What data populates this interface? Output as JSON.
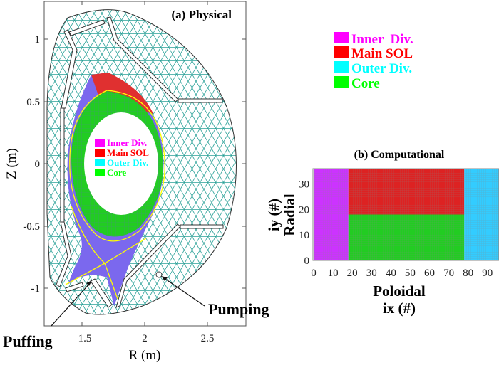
{
  "panel_a": {
    "title": "(a) Physical",
    "xlabel": "R (m)",
    "ylabel": "Z (m)",
    "xticks": [
      "1.5",
      "2",
      "2.5"
    ],
    "xtick_values": [
      1.5,
      2.0,
      2.5
    ],
    "yticks": [
      "1",
      "0.5",
      "0",
      "-0.5",
      "-1"
    ],
    "ytick_values": [
      1.0,
      0.5,
      0.0,
      -0.5,
      -1.0
    ],
    "xlim": [
      1.2,
      2.8
    ],
    "ylim": [
      -1.3,
      1.3
    ],
    "inner_legend": [
      {
        "label": "Inner Div.",
        "color": "#ff00ff"
      },
      {
        "label": "Main SOL",
        "color": "#ff0000"
      },
      {
        "label": "Outer Div.",
        "color": "#00ffff"
      },
      {
        "label": "Core",
        "color": "#00ff00"
      }
    ],
    "annotations": {
      "puffing": "Puffing",
      "pumping": "Pumping"
    },
    "colors": {
      "mesh": "#2aa198",
      "separatrix": "#ffff00",
      "sol": "#7b68ee"
    }
  },
  "legend": [
    {
      "label": "Inner  Div.",
      "color": "#ff00ff"
    },
    {
      "label": "Main SOL",
      "color": "#ff0000"
    },
    {
      "label": "Outer Div.",
      "color": "#00ffff"
    },
    {
      "label": "Core",
      "color": "#00ff00"
    }
  ],
  "panel_b": {
    "title": "(b) Computational",
    "xlabel_line1": "Poloidal",
    "xlabel_line2": "ix (#)",
    "ylabel_line1": "Radial",
    "ylabel_line2": "iy (#)",
    "xticks": [
      "0",
      "10",
      "20",
      "30",
      "40",
      "50",
      "60",
      "70",
      "80",
      "90"
    ],
    "yticks": [
      "0",
      "10",
      "20",
      "30"
    ]
  },
  "chart_data": {
    "type": "heatmap",
    "title": "(b) Computational",
    "xlabel": "Poloidal ix (#)",
    "ylabel": "Radial iy (#)",
    "xlim": [
      0,
      96
    ],
    "ylim": [
      0,
      36
    ],
    "regions": [
      {
        "name": "Inner Div.",
        "ix": [
          0,
          18
        ],
        "iy": [
          0,
          36
        ],
        "color": "#cc33ff"
      },
      {
        "name": "Main SOL",
        "ix": [
          18,
          78
        ],
        "iy": [
          18,
          36
        ],
        "color": "#dd2222"
      },
      {
        "name": "Core",
        "ix": [
          18,
          78
        ],
        "iy": [
          0,
          18
        ],
        "color": "#22cc22"
      },
      {
        "name": "Outer Div.",
        "ix": [
          78,
          96
        ],
        "iy": [
          0,
          36
        ],
        "color": "#33ccff"
      }
    ]
  }
}
